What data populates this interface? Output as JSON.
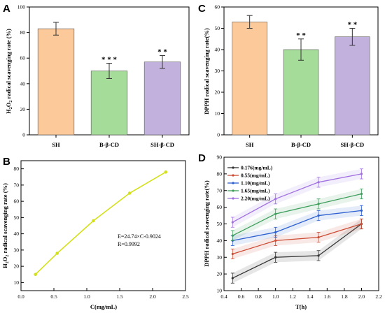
{
  "chart_data": [
    {
      "panel": "A",
      "type": "bar",
      "categories": [
        "SH",
        "B-β-CD",
        "SH-β-CD"
      ],
      "values": [
        83,
        50,
        57
      ],
      "errors": [
        5,
        6,
        5
      ],
      "significance": [
        "",
        "* * *",
        "* *"
      ],
      "ylabel_main": "H",
      "ylabel_sub1": "2",
      "ylabel_mid": "O",
      "ylabel_sub2": "2",
      "ylabel_tail": " radical scavenging rate (%)",
      "ylim": [
        0,
        100
      ],
      "yticks": [
        "0",
        "20",
        "40",
        "60",
        "80",
        "100"
      ],
      "colors": [
        "#fcc99a",
        "#a6dc9a",
        "#c2b1dc"
      ]
    },
    {
      "panel": "C",
      "type": "bar",
      "categories": [
        "SH",
        "B-β-CD",
        "SH-β-CD"
      ],
      "values": [
        53,
        40,
        46
      ],
      "errors": [
        3,
        5,
        4
      ],
      "significance": [
        "",
        "* *",
        "* *"
      ],
      "ylabel": "DPPH radical scavenging rate(%)",
      "ylim": [
        0,
        60
      ],
      "yticks": [
        "0",
        "10",
        "20",
        "30",
        "40",
        "50",
        "60"
      ],
      "colors": [
        "#fcc99a",
        "#a6dc9a",
        "#c2b1dc"
      ]
    },
    {
      "panel": "B",
      "type": "line",
      "x": [
        0.22,
        0.55,
        1.1,
        1.65,
        2.2
      ],
      "y": [
        15,
        28,
        48,
        65,
        78
      ],
      "xlabel": "C(mg/mL)",
      "ylabel_main": "H",
      "ylabel_sub1": "2",
      "ylabel_mid": "O",
      "ylabel_sub2": "2",
      "ylabel_tail": " radical scavenging rate (%)",
      "xlim": [
        0,
        2.5
      ],
      "ylim": [
        5,
        85
      ],
      "xticks": [
        "0.0",
        "0.5",
        "1.0",
        "1.5",
        "2.0",
        "2.5"
      ],
      "yticks": [
        "10",
        "20",
        "30",
        "40",
        "50",
        "60",
        "70",
        "80"
      ],
      "color": "#d4e01c",
      "equation": "E=24.74×C-0.9024",
      "r_value": "R=0.9992"
    },
    {
      "panel": "D",
      "type": "line",
      "x": [
        0.5,
        1.0,
        1.5,
        2.0
      ],
      "xlabel": "T(h)",
      "ylabel": "DPPH radical scavenging rate(%)",
      "xlim": [
        0.4,
        2.2
      ],
      "ylim": [
        10,
        90
      ],
      "xticks": [
        "0.4",
        "0.6",
        "0.8",
        "1.0",
        "1.2",
        "1.4",
        "1.6",
        "1.8",
        "2.0",
        "2.2"
      ],
      "yticks": [
        "10",
        "20",
        "30",
        "40",
        "50",
        "60",
        "70",
        "80",
        "90"
      ],
      "series": [
        {
          "name": "0.176(mg/mL)",
          "values": [
            17.5,
            30,
            31,
            50
          ],
          "color": "#333333",
          "err": 3
        },
        {
          "name": "0.55(mg/mL)",
          "values": [
            32,
            40,
            42,
            50
          ],
          "color": "#cc4c34",
          "err": 3
        },
        {
          "name": "1.10(mg/mL)",
          "values": [
            40,
            45,
            55,
            58
          ],
          "color": "#2c5fd0",
          "err": 3
        },
        {
          "name": "1.65(mg/mL)",
          "values": [
            43,
            56,
            62,
            68
          ],
          "color": "#3c9e5a",
          "err": 3
        },
        {
          "name": "2.20(mg/mL)",
          "values": [
            51,
            65,
            75,
            80
          ],
          "color": "#a070e0",
          "err": 3
        }
      ]
    }
  ]
}
